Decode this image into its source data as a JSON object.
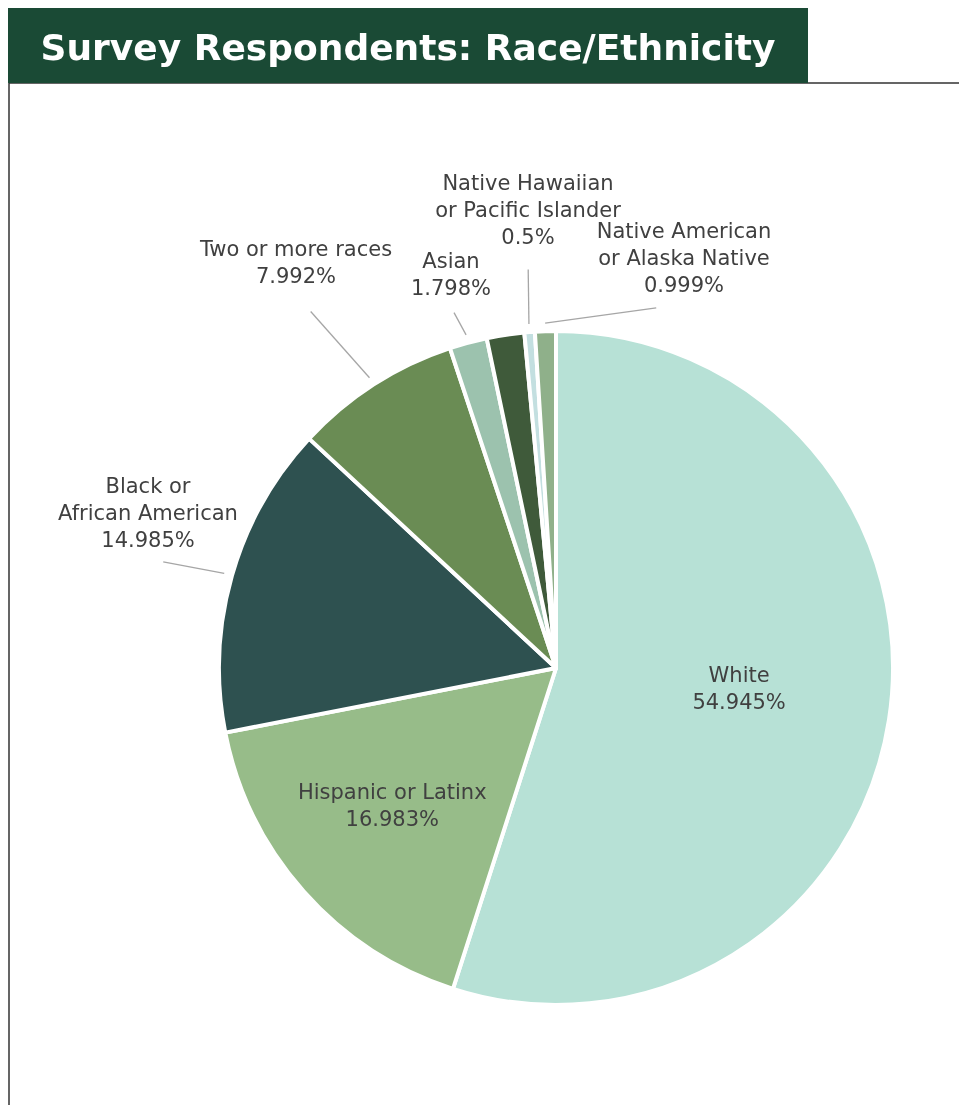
{
  "chart_data": {
    "type": "pie",
    "title": "Survey Respondents: Race/Ethnicity",
    "categories": [
      "White",
      "Hispanic or Latinx",
      "Black or\nAfrican American",
      "Two or more races",
      "Asian",
      null,
      "Native Hawaiian\nor Pacific Islander",
      "Native American\nor Alaska Native"
    ],
    "values": [
      54.945,
      16.983,
      14.985,
      7.992,
      1.798,
      1.798,
      0.5,
      0.999
    ],
    "colors": [
      "#b7e1d6",
      "#97bc89",
      "#2e5150",
      "#6a8c54",
      "#9cc2ae",
      "#3f5a3a",
      "#c3dfe0",
      "#8fb08a"
    ],
    "value_labels": [
      "54.945%",
      "16.983%",
      "14.985%",
      "7.992%",
      "1.798%",
      null,
      "0.5%",
      "0.999%"
    ]
  }
}
